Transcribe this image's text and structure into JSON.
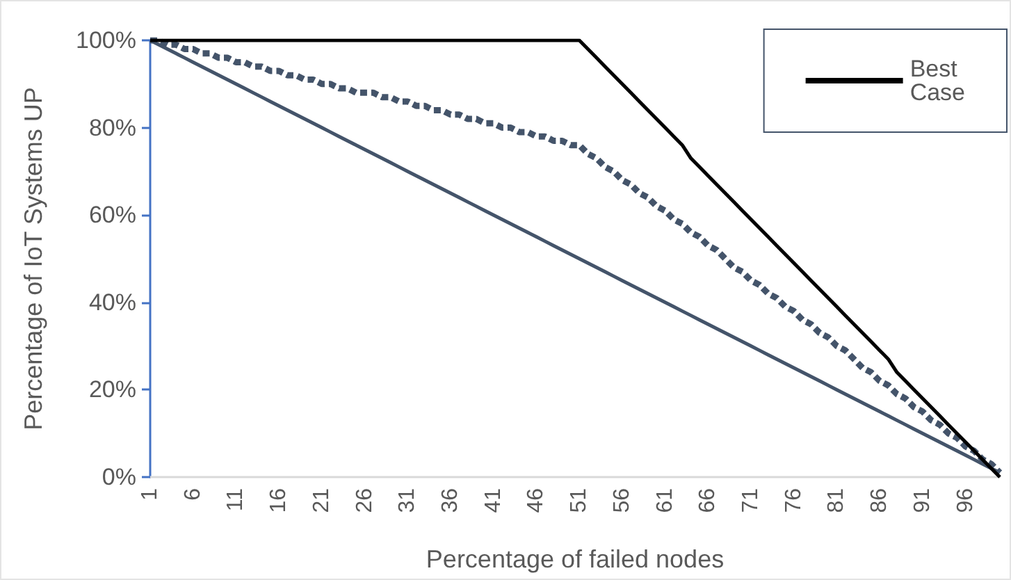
{
  "chart_data": {
    "type": "line",
    "xlabel": "Percentage of failed nodes",
    "ylabel": "Percentage of IoT Systems UP",
    "categories": [
      "1",
      null,
      null,
      null,
      null,
      "6",
      null,
      null,
      null,
      null,
      "11",
      null,
      null,
      null,
      null,
      "16",
      null,
      null,
      null,
      null,
      "21",
      null,
      null,
      null,
      null,
      "26",
      null,
      null,
      null,
      null,
      "31",
      null,
      null,
      null,
      null,
      "36",
      null,
      null,
      null,
      null,
      "41",
      null,
      null,
      null,
      null,
      "46",
      null,
      null,
      null,
      null,
      "51",
      null,
      null,
      null,
      null,
      "56",
      null,
      null,
      null,
      null,
      "61",
      null,
      null,
      null,
      null,
      "66",
      null,
      null,
      null,
      null,
      "71",
      null,
      null,
      null,
      null,
      "76",
      null,
      null,
      null,
      null,
      "81",
      null,
      null,
      null,
      null,
      "86",
      null,
      null,
      null,
      null,
      "91",
      null,
      null,
      null,
      null,
      "96",
      null,
      null,
      null,
      null
    ],
    "ylim": [
      0,
      100
    ],
    "yticks": [
      {
        "value": 0,
        "label": "0%"
      },
      {
        "value": 20,
        "label": "20%"
      },
      {
        "value": 40,
        "label": "40%"
      },
      {
        "value": 60,
        "label": "60%"
      },
      {
        "value": 80,
        "label": "80%"
      },
      {
        "value": 100,
        "label": "100%"
      }
    ],
    "grid": false,
    "legend": "top right",
    "marker": "none",
    "series": [
      {
        "name": "Best Case",
        "color": "#000000",
        "line_style": "solid",
        "values": [
          100,
          100,
          100,
          100,
          100,
          100,
          100,
          100,
          100,
          100,
          100,
          100,
          100,
          100,
          100,
          100,
          100,
          100,
          100,
          100,
          100,
          100,
          100,
          100,
          100,
          100,
          100,
          100,
          100,
          100,
          100,
          100,
          100,
          100,
          100,
          100,
          100,
          100,
          100,
          100,
          100,
          100,
          100,
          100,
          100,
          100,
          100,
          100,
          100,
          100,
          100,
          98,
          96,
          94,
          92,
          90,
          88,
          86,
          84,
          82,
          80,
          78,
          76,
          73,
          71,
          69,
          67,
          65,
          63,
          61,
          59,
          57,
          55,
          53,
          51,
          49,
          47,
          45,
          43,
          41,
          39,
          37,
          35,
          33,
          31,
          29,
          27,
          24,
          22,
          20,
          18,
          16,
          14,
          12,
          10,
          8,
          6,
          4,
          2,
          0
        ]
      },
      {
        "color": "#44546a",
        "line_style": "dashed",
        "values": [
          100,
          100,
          99,
          99,
          98,
          98,
          97,
          97,
          96,
          96,
          95,
          95,
          94,
          94,
          93,
          93,
          92,
          92,
          91,
          91,
          90,
          90,
          89,
          89,
          88,
          88,
          88,
          87,
          87,
          86,
          86,
          85,
          85,
          84,
          84,
          83,
          83,
          82,
          82,
          81,
          81,
          80,
          80,
          79,
          79,
          78,
          78,
          77,
          77,
          76,
          76,
          74,
          73,
          71,
          70,
          68,
          67,
          65,
          64,
          62,
          61,
          59,
          58,
          56,
          55,
          53,
          52,
          50,
          48,
          47,
          45,
          44,
          42,
          41,
          39,
          38,
          36,
          35,
          33,
          32,
          30,
          29,
          27,
          25,
          24,
          22,
          21,
          19,
          18,
          16,
          15,
          13,
          12,
          10,
          9,
          7,
          6,
          4,
          3,
          1
        ]
      },
      {
        "color": "#44546a",
        "line_style": "solid",
        "values": [
          100,
          99,
          98,
          97,
          96,
          95,
          94,
          93,
          92,
          91,
          90,
          89,
          88,
          87,
          86,
          85,
          84,
          83,
          82,
          81,
          80,
          79,
          78,
          77,
          76,
          75,
          74,
          73,
          72,
          71,
          70,
          69,
          68,
          67,
          66,
          65,
          64,
          63,
          62,
          61,
          60,
          59,
          58,
          57,
          56,
          55,
          54,
          53,
          52,
          51,
          50,
          49,
          48,
          47,
          46,
          45,
          44,
          43,
          42,
          41,
          40,
          39,
          38,
          37,
          36,
          35,
          34,
          33,
          32,
          31,
          30,
          29,
          28,
          27,
          26,
          25,
          24,
          23,
          22,
          21,
          20,
          19,
          18,
          17,
          16,
          15,
          14,
          13,
          12,
          11,
          10,
          9,
          8,
          7,
          6,
          5,
          4,
          3,
          2,
          1
        ]
      }
    ]
  }
}
